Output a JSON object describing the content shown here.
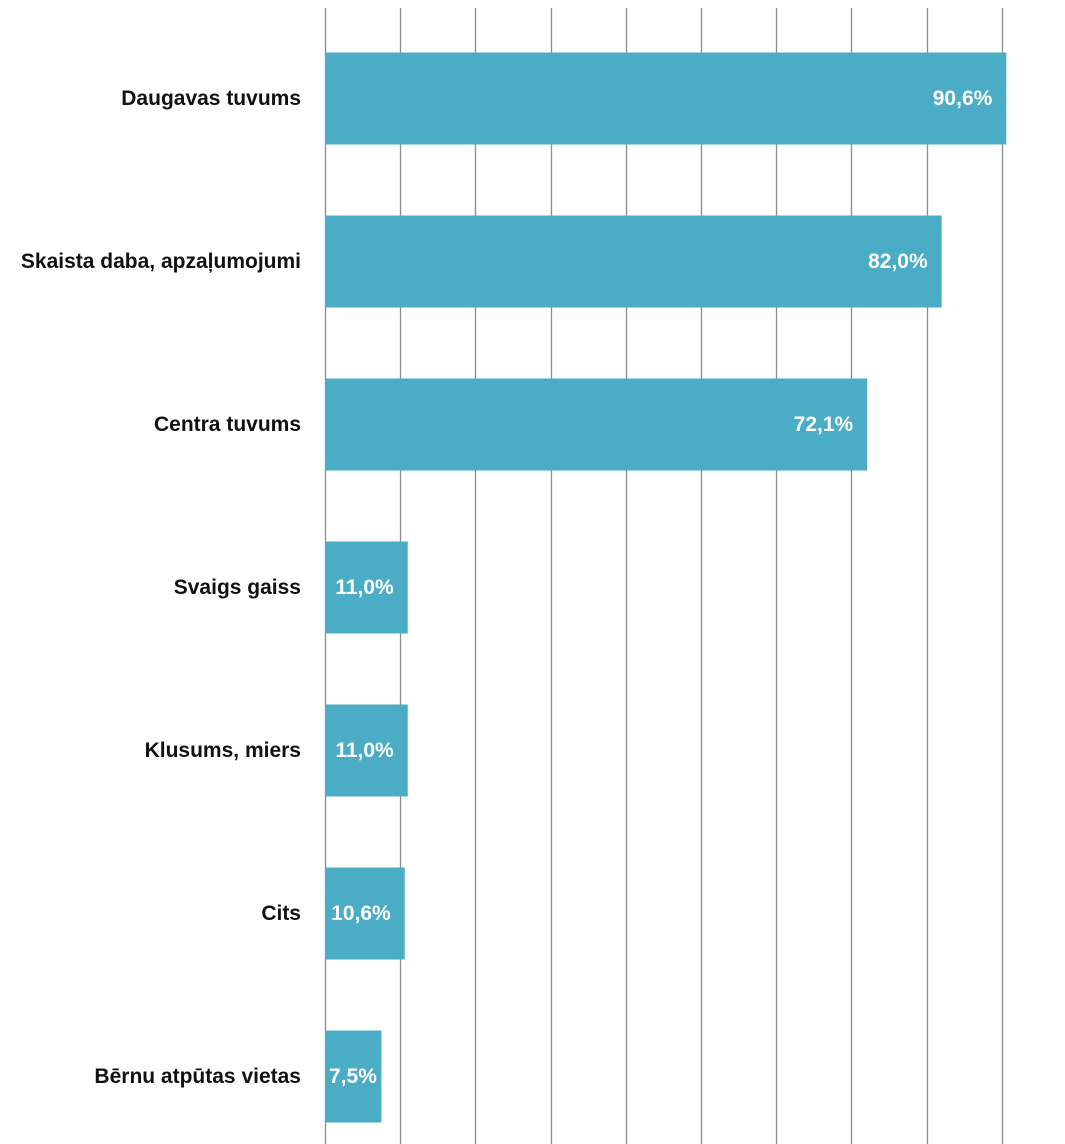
{
  "chart_data": {
    "type": "bar",
    "orientation": "horizontal",
    "title": "",
    "xlabel": "",
    "ylabel": "",
    "categories": [
      "Daugavas tuvums",
      "Skaista daba, apzaļumojumi",
      "Centra tuvums",
      "Svaigs gaiss",
      "Klusums, miers",
      "Cits",
      "Bērnu atpūtas vietas"
    ],
    "values": [
      90.6,
      82.0,
      72.1,
      11.0,
      11.0,
      10.6,
      7.5
    ],
    "data_labels": [
      "90,6%",
      "82,0%",
      "72,1%",
      "11,0%",
      "11,0%",
      "10,6%",
      "7,5%"
    ],
    "xlim": [
      0,
      90
    ],
    "x_gridline_step": 10,
    "x_tick_labels_visible": false,
    "grid": true,
    "legend": "none",
    "bar_color": "#4BACC6",
    "gridline_color": "#8C8C8C",
    "label_color": "#111111",
    "data_label_color": "#FFFFFF"
  }
}
